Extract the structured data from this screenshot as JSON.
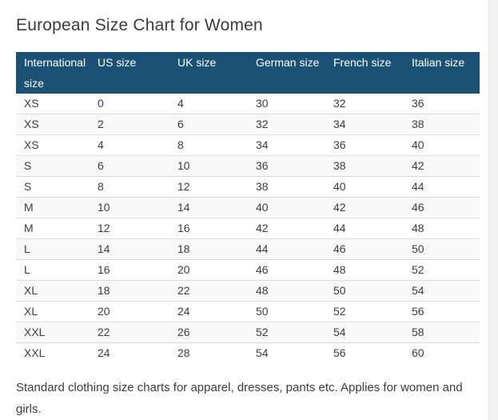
{
  "page": {
    "title": "European Size Chart for Women",
    "footer_note": "Standard clothing size charts for apparel, dresses, pants etc. Applies for women and girls."
  },
  "size_table": {
    "columns": [
      "International size",
      "US size",
      "UK size",
      "German size",
      "French size",
      "Italian size"
    ],
    "rows": [
      [
        "XS",
        "0",
        "4",
        "30",
        "32",
        "36"
      ],
      [
        "XS",
        "2",
        "6",
        "32",
        "34",
        "38"
      ],
      [
        "XS",
        "4",
        "8",
        "34",
        "36",
        "40"
      ],
      [
        "S",
        "6",
        "10",
        "36",
        "38",
        "42"
      ],
      [
        "S",
        "8",
        "12",
        "38",
        "40",
        "44"
      ],
      [
        "M",
        "10",
        "14",
        "40",
        "42",
        "46"
      ],
      [
        "M",
        "12",
        "16",
        "42",
        "44",
        "48"
      ],
      [
        "L",
        "14",
        "18",
        "44",
        "46",
        "50"
      ],
      [
        "L",
        "16",
        "20",
        "46",
        "48",
        "52"
      ],
      [
        "XL",
        "18",
        "22",
        "48",
        "50",
        "54"
      ],
      [
        "XL",
        "20",
        "24",
        "50",
        "52",
        "56"
      ],
      [
        "XXL",
        "22",
        "26",
        "52",
        "54",
        "58"
      ],
      [
        "XXL",
        "24",
        "28",
        "54",
        "56",
        "60"
      ]
    ]
  },
  "colors": {
    "header_bg": "#1a5174",
    "header_text": "#ffffff",
    "title_text": "#3b3b3b",
    "body_text": "#3d3d3d",
    "stripe_bg": "#f8f8f8",
    "row_divider": "#dcdcdc",
    "container_border": "#e2e2e2",
    "gutter_bg": "#f2f2f2"
  }
}
